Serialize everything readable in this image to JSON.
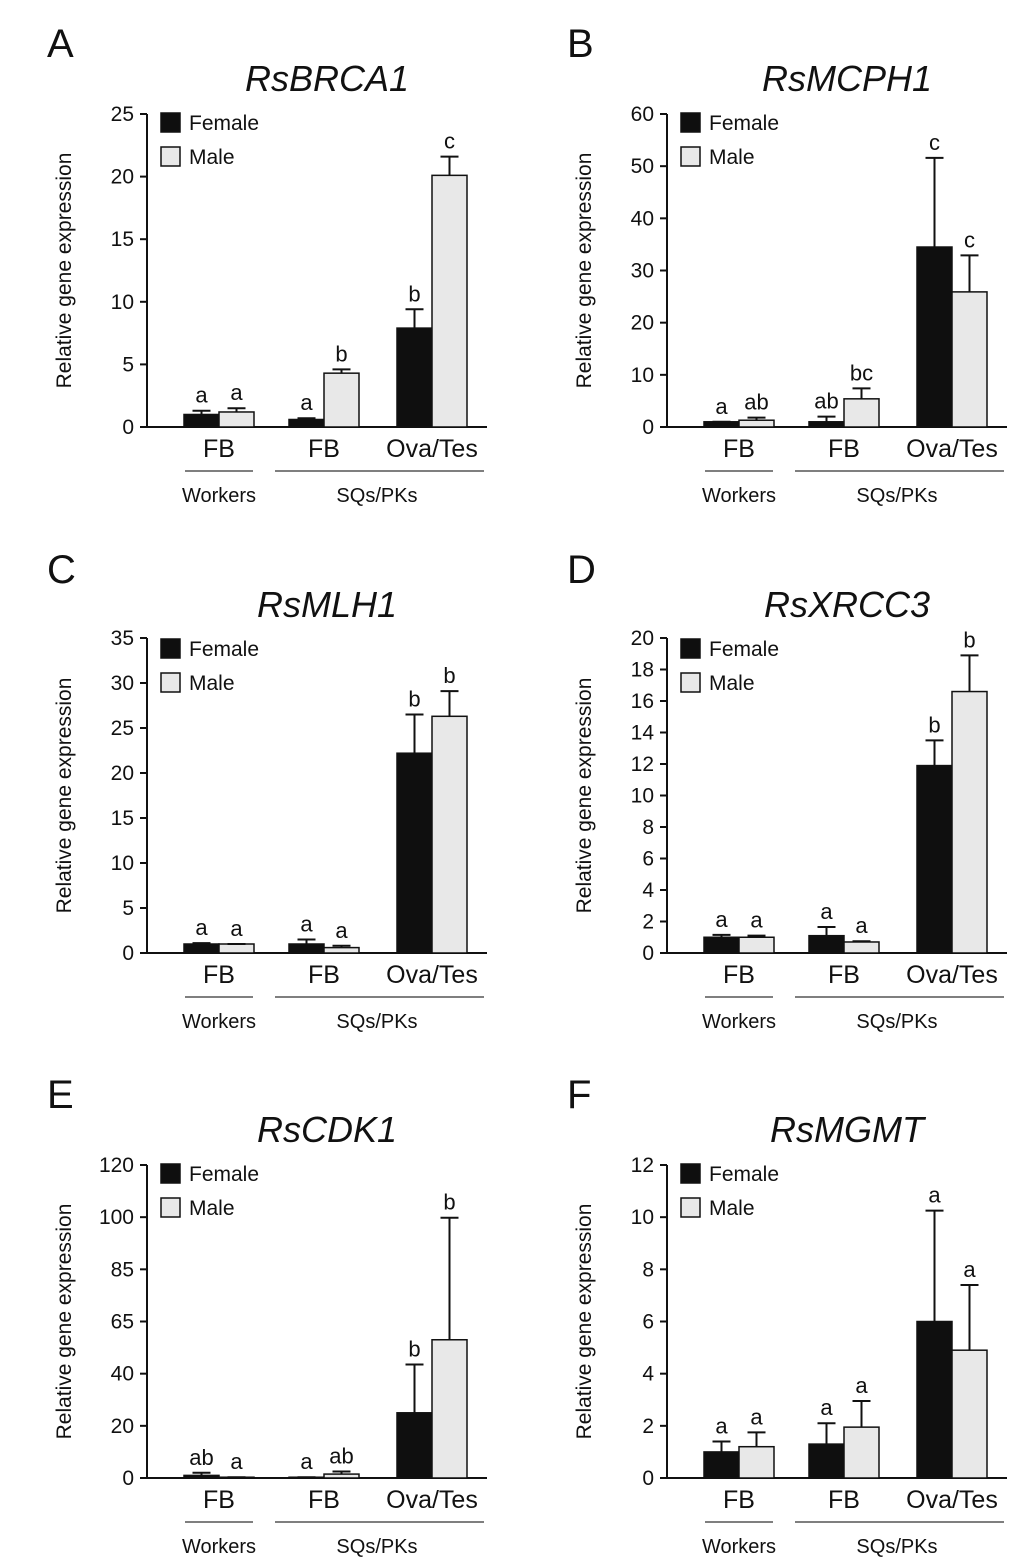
{
  "figure": {
    "ylabel": "Relative gene expression",
    "legend": {
      "female": "Female",
      "male": "Male",
      "female_color": "#0f0f0f",
      "male_color": "#e8e8e8",
      "placement": "top-left"
    },
    "group_labels": [
      "FB",
      "FB",
      "Ova/Tes"
    ],
    "caste_labels": [
      "Workers",
      "SQs/PKs"
    ]
  },
  "chart_data": [
    {
      "type": "bar",
      "panel": "A",
      "title": "RsBRCA1",
      "ylabel": "Relative gene expression",
      "categories": [
        "FB",
        "FB",
        "Ova/Tes"
      ],
      "groups": [
        "Workers",
        "SQs/PKs"
      ],
      "ylim": [
        0,
        25
      ],
      "yticks": [
        "0",
        "5",
        "10",
        "15",
        "20",
        "25"
      ],
      "grid": false,
      "legend_placement": "top-left",
      "series": [
        {
          "name": "Female",
          "color": "#0f0f0f",
          "values": [
            1.0,
            0.6,
            7.9
          ],
          "errors": [
            0.3,
            0.1,
            1.5
          ],
          "letters": [
            "a",
            "a",
            "b"
          ]
        },
        {
          "name": "Male",
          "color": "#e8e8e8",
          "values": [
            1.2,
            4.3,
            20.1
          ],
          "errors": [
            0.3,
            0.3,
            1.5
          ],
          "letters": [
            "a",
            "b",
            "c"
          ]
        }
      ]
    },
    {
      "type": "bar",
      "panel": "B",
      "title": "RsMCPH1",
      "ylabel": "Relative gene expression",
      "categories": [
        "FB",
        "FB",
        "Ova/Tes"
      ],
      "groups": [
        "Workers",
        "SQs/PKs"
      ],
      "ylim": [
        0,
        60
      ],
      "yticks": [
        "0",
        "10",
        "20",
        "30",
        "40",
        "50",
        "60"
      ],
      "grid": false,
      "legend_placement": "top-left",
      "series": [
        {
          "name": "Female",
          "color": "#0f0f0f",
          "values": [
            1.0,
            1.0,
            34.5
          ],
          "errors": [
            0.0,
            1.0,
            17.1
          ],
          "letters": [
            "a",
            "ab",
            "c"
          ]
        },
        {
          "name": "Male",
          "color": "#e8e8e8",
          "values": [
            1.3,
            5.4,
            25.9
          ],
          "errors": [
            0.5,
            2.0,
            7.0
          ],
          "letters": [
            "ab",
            "bc",
            "c"
          ]
        }
      ]
    },
    {
      "type": "bar",
      "panel": "C",
      "title": "RsMLH1",
      "ylabel": "Relative gene expression",
      "categories": [
        "FB",
        "FB",
        "Ova/Tes"
      ],
      "groups": [
        "Workers",
        "SQs/PKs"
      ],
      "ylim": [
        0,
        35
      ],
      "yticks": [
        "0",
        "5",
        "10",
        "15",
        "20",
        "25",
        "30",
        "35"
      ],
      "grid": false,
      "legend_placement": "top-left",
      "series": [
        {
          "name": "Female",
          "color": "#0f0f0f",
          "values": [
            1.0,
            1.0,
            22.2
          ],
          "errors": [
            0.1,
            0.5,
            4.3
          ],
          "letters": [
            "a",
            "a",
            "b"
          ]
        },
        {
          "name": "Male",
          "color": "#e8e8e8",
          "values": [
            1.0,
            0.6,
            26.3
          ],
          "errors": [
            0.0,
            0.2,
            2.8
          ],
          "letters": [
            "a",
            "a",
            "b"
          ]
        }
      ]
    },
    {
      "type": "bar",
      "panel": "D",
      "title": "RsXRCC3",
      "ylabel": "Relative gene expression",
      "categories": [
        "FB",
        "FB",
        "Ova/Tes"
      ],
      "groups": [
        "Workers",
        "SQs/PKs"
      ],
      "ylim": [
        0,
        20
      ],
      "yticks": [
        "0",
        "2",
        "4",
        "6",
        "8",
        "10",
        "12",
        "14",
        "16",
        "18",
        "20"
      ],
      "grid": false,
      "legend_placement": "top-left",
      "series": [
        {
          "name": "Female",
          "color": "#0f0f0f",
          "values": [
            1.0,
            1.1,
            11.9
          ],
          "errors": [
            0.15,
            0.55,
            1.6
          ],
          "letters": [
            "a",
            "a",
            "b"
          ]
        },
        {
          "name": "Male",
          "color": "#e8e8e8",
          "values": [
            1.0,
            0.7,
            16.6
          ],
          "errors": [
            0.1,
            0.05,
            2.3
          ],
          "letters": [
            "a",
            "a",
            "b"
          ]
        }
      ]
    },
    {
      "type": "bar",
      "panel": "E",
      "title": "RsCDK1",
      "ylabel": "Relative gene expression",
      "categories": [
        "FB",
        "FB",
        "Ova/Tes"
      ],
      "groups": [
        "Workers",
        "SQs/PKs"
      ],
      "ylim": [
        0,
        120
      ],
      "yticks": [
        "0",
        "20",
        "40",
        "65",
        "85",
        "100",
        "120"
      ],
      "grid": false,
      "legend_placement": "top-left",
      "series": [
        {
          "name": "Female",
          "color": "#0f0f0f",
          "values": [
            1.0,
            0.3,
            25.0
          ],
          "errors": [
            1.0,
            0.0,
            18.5
          ],
          "letters": [
            "ab",
            "a",
            "b"
          ]
        },
        {
          "name": "Male",
          "color": "#e8e8e8",
          "values": [
            0.3,
            1.5,
            53.0
          ],
          "errors": [
            0.0,
            1.0,
            46.8
          ],
          "letters": [
            "a",
            "ab",
            "b"
          ]
        }
      ]
    },
    {
      "type": "bar",
      "panel": "F",
      "title": "RsMGMT",
      "ylabel": "Relative gene expression",
      "categories": [
        "FB",
        "FB",
        "Ova/Tes"
      ],
      "groups": [
        "Workers",
        "SQs/PKs"
      ],
      "ylim": [
        0,
        12
      ],
      "yticks": [
        "0",
        "2",
        "4",
        "6",
        "8",
        "10",
        "12"
      ],
      "grid": false,
      "legend_placement": "top-left",
      "series": [
        {
          "name": "Female",
          "color": "#0f0f0f",
          "values": [
            1.0,
            1.3,
            6.0
          ],
          "errors": [
            0.4,
            0.8,
            4.25
          ],
          "letters": [
            "a",
            "a",
            "a"
          ]
        },
        {
          "name": "Male",
          "color": "#e8e8e8",
          "values": [
            1.2,
            1.95,
            4.9
          ],
          "errors": [
            0.55,
            1.0,
            2.5
          ],
          "letters": [
            "a",
            "a",
            "a"
          ]
        }
      ]
    }
  ]
}
